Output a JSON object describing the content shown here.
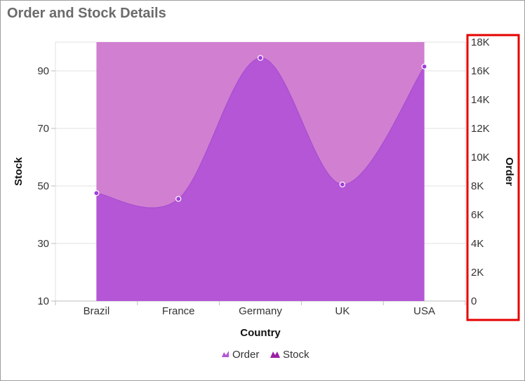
{
  "chart_data": {
    "type": "area",
    "title": "Order and Stock Details",
    "xlabel": "Country",
    "ylabel": "Stock",
    "y2label": "Order",
    "categories": [
      "Brazil",
      "France",
      "Germany",
      "UK",
      "USA"
    ],
    "ylim": [
      10,
      100
    ],
    "y2lim": [
      0,
      18000
    ],
    "yticks": [
      "10",
      "30",
      "50",
      "70",
      "90"
    ],
    "y2ticks": [
      "0",
      "2K",
      "4K",
      "6K",
      "8K",
      "10K",
      "12K",
      "14K",
      "16K",
      "18K"
    ],
    "grid": true,
    "legend_position": "bottom",
    "series": [
      {
        "name": "Stock",
        "axis": "primary",
        "values": [
          100,
          100,
          100,
          100,
          100
        ],
        "color": "#d17fd1"
      },
      {
        "name": "Order",
        "axis": "secondary",
        "values": [
          7500,
          7100,
          16900,
          8100,
          16300
        ],
        "color": "#b456d6"
      }
    ],
    "marker_color": "#a13dd9",
    "highlight_color": "#e60000"
  }
}
